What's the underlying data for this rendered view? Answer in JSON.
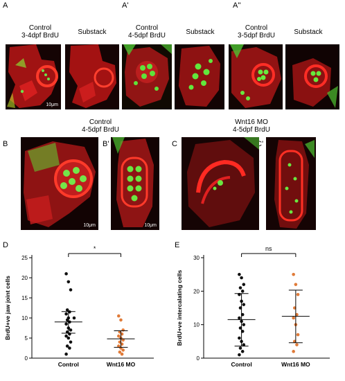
{
  "panels": {
    "A": {
      "label": "A",
      "title": "Control\n3-4dpf BrdU",
      "substack": "Substack",
      "scale": "10μm"
    },
    "A1": {
      "label": "A'",
      "title": "Control\n4-5dpf BrdU",
      "substack": "Substack"
    },
    "A2": {
      "label": "A''",
      "title": "Control\n3-5dpf BrdU",
      "substack": "Substack"
    },
    "B_group_title": "Control\n4-5dpf BrdU",
    "C_group_title": "Wnt16 MO\n4-5dpf BrdU",
    "B": {
      "label": "B",
      "scale": "10μm"
    },
    "B1": {
      "label": "B'",
      "scale": "10μm"
    },
    "C": {
      "label": "C"
    },
    "C1": {
      "label": "C'"
    }
  },
  "colors": {
    "control_dot": "#111111",
    "mo_dot": "#e07b39",
    "red_channel": "#d81e1e",
    "green_channel": "#39d23a"
  },
  "chart_data": [
    {
      "panel_label": "D",
      "type": "scatter",
      "ylabel": "BrdU+ve jaw joint cells",
      "categories": [
        "Control",
        "Wnt16 MO"
      ],
      "ylim": [
        0,
        25
      ],
      "yticks": [
        0,
        5,
        10,
        15,
        20,
        25
      ],
      "significance": "*",
      "series": [
        {
          "name": "Control",
          "values": [
            21,
            19,
            17,
            12,
            11.5,
            11,
            10,
            10,
            9.5,
            9,
            8.5,
            7.5,
            7,
            6.5,
            6,
            5.5,
            5,
            4,
            3,
            2.5,
            1
          ],
          "mean": 9,
          "sd_upper": 11.6,
          "sd_lower": 6.2
        },
        {
          "name": "Wnt16 MO",
          "values": [
            10.5,
            9.5,
            7,
            6.5,
            6,
            5.5,
            5,
            4.5,
            4,
            3.5,
            3,
            2.5,
            2,
            1.5,
            1
          ],
          "mean": 4.8,
          "sd_upper": 6.8,
          "sd_lower": 2.7
        }
      ]
    },
    {
      "panel_label": "E",
      "type": "scatter",
      "ylabel": "BrdU+ve intercalating cells",
      "categories": [
        "Control",
        "Wnt16 MO"
      ],
      "ylim": [
        0,
        30
      ],
      "yticks": [
        0,
        10,
        20,
        30
      ],
      "significance": "ns",
      "series": [
        {
          "name": "Control",
          "values": [
            25,
            24,
            22,
            21,
            20,
            19,
            17,
            16,
            15,
            13,
            12,
            11,
            10,
            9,
            8,
            6,
            5,
            4,
            3,
            2,
            1
          ],
          "mean": 11.5,
          "sd_upper": 19.3,
          "sd_lower": 3.6
        },
        {
          "name": "Wnt16 MO",
          "values": [
            25,
            22,
            19,
            15,
            13,
            12,
            10,
            7,
            5,
            4,
            2
          ],
          "mean": 12.5,
          "sd_upper": 20.3,
          "sd_lower": 4.6
        }
      ]
    }
  ]
}
